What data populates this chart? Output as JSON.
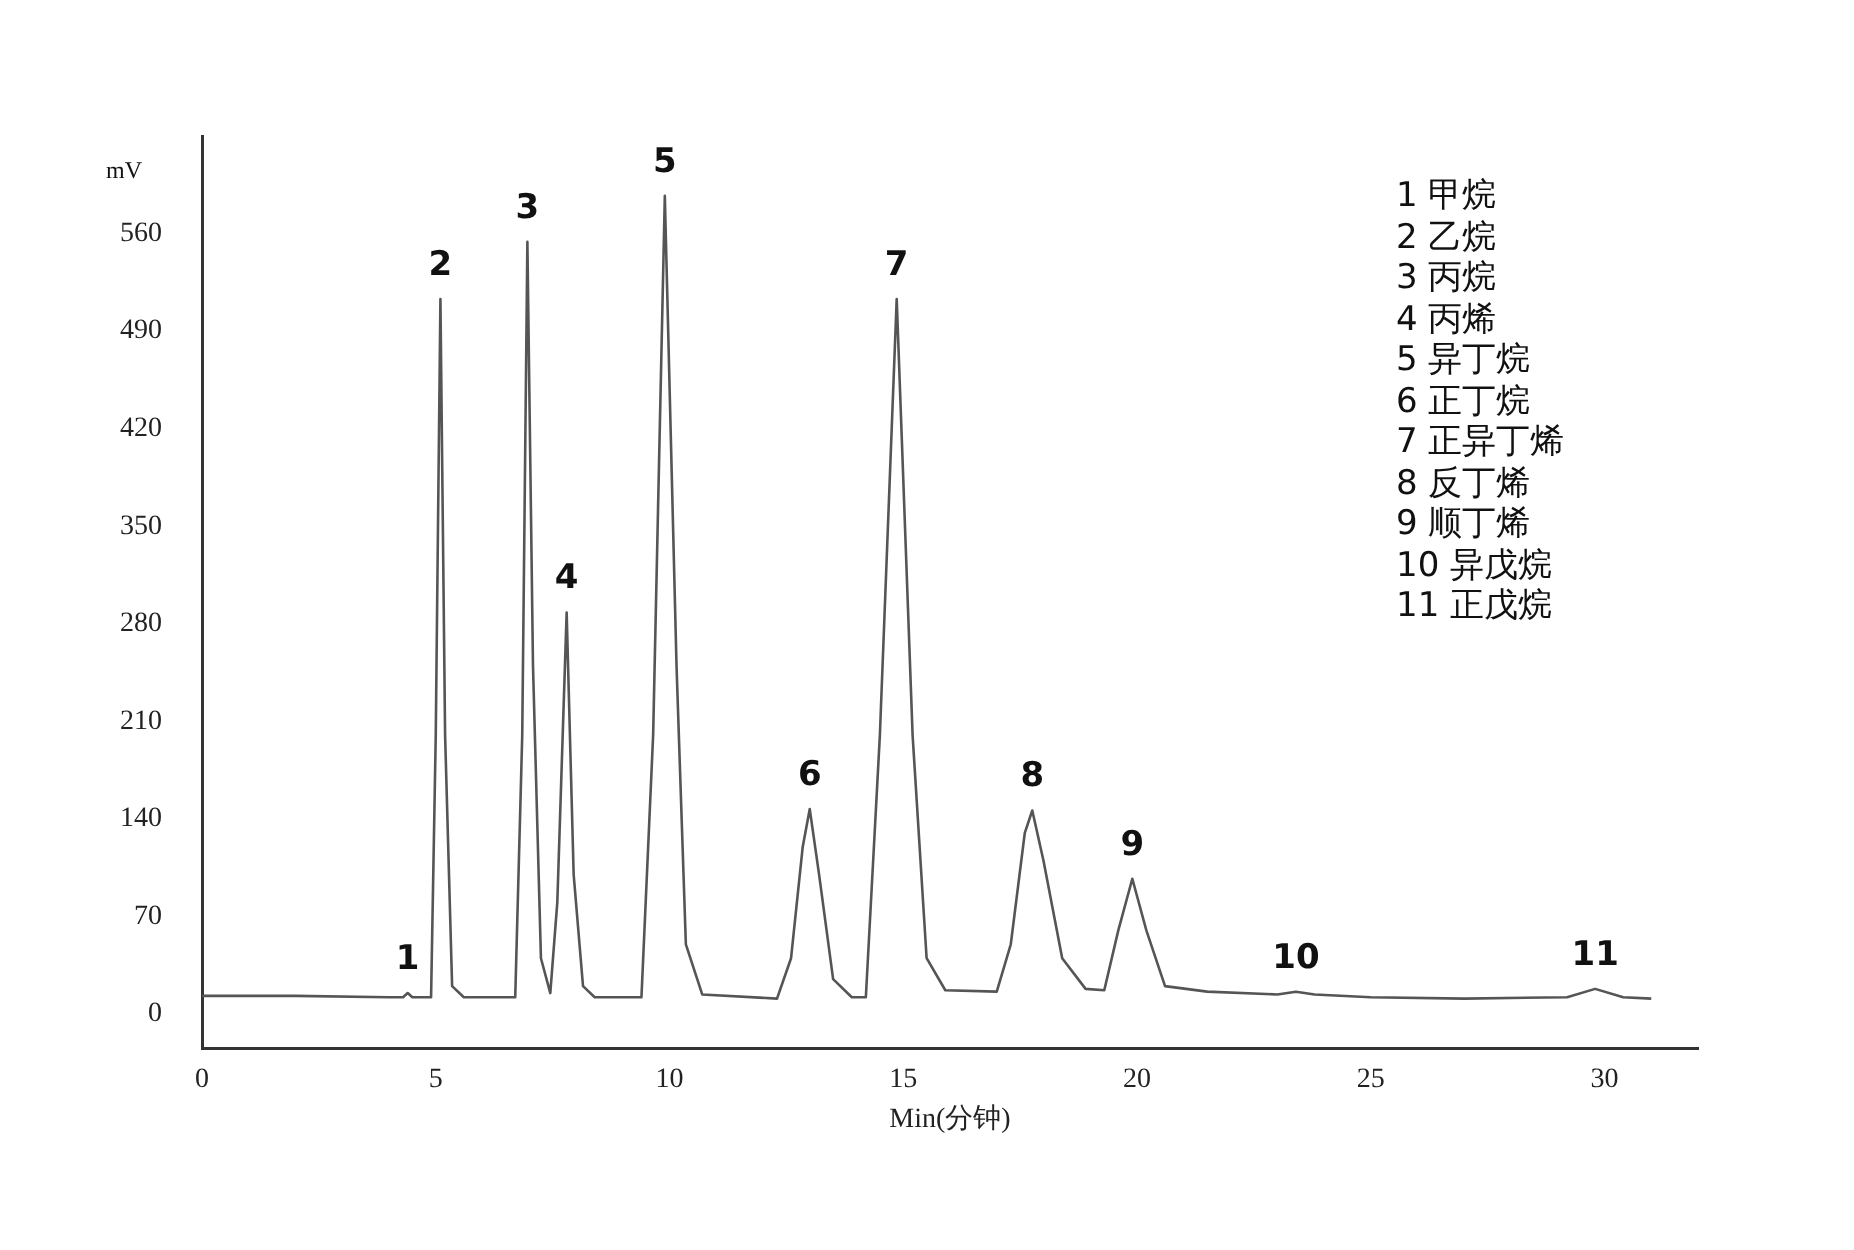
{
  "chart_data": {
    "type": "line",
    "xlabel": "Min(分钟)",
    "ylabel": "mV",
    "xlim": [
      0,
      32
    ],
    "xticks": [
      0,
      5,
      10,
      15,
      20,
      25,
      30
    ],
    "ylim": [
      -25,
      630
    ],
    "yticks": [
      0,
      70,
      140,
      210,
      280,
      350,
      420,
      490,
      560
    ],
    "grid": false,
    "legend": false,
    "marker": "none",
    "line_style": "solid",
    "series": [
      {
        "color": "#555555",
        "x": [
          0,
          2,
          4,
          4.3,
          4.4,
          4.5,
          4.9,
          5.0,
          5.1,
          5.2,
          5.35,
          5.6,
          6.7,
          6.85,
          6.96,
          7.08,
          7.25,
          7.45,
          7.6,
          7.8,
          7.95,
          8.15,
          8.4,
          9.4,
          9.65,
          9.9,
          10.15,
          10.35,
          10.7,
          12.3,
          12.6,
          12.85,
          13.0,
          13.2,
          13.5,
          13.9,
          14.2,
          14.5,
          14.86,
          15.2,
          15.5,
          15.9,
          17.0,
          17.3,
          17.6,
          17.76,
          18.0,
          18.4,
          18.9,
          19.3,
          19.6,
          19.9,
          20.2,
          20.6,
          21.5,
          23.0,
          23.4,
          23.8,
          25,
          27,
          29.2,
          29.8,
          30.4,
          31
        ],
        "values": [
          13,
          13,
          12,
          12,
          15,
          12,
          12,
          200,
          513,
          200,
          20,
          12,
          12,
          200,
          554,
          250,
          40,
          15,
          80,
          288,
          100,
          20,
          12,
          12,
          200,
          587,
          250,
          50,
          14,
          11,
          40,
          120,
          147,
          100,
          25,
          12,
          12,
          200,
          513,
          200,
          40,
          17,
          16,
          50,
          130,
          146,
          110,
          40,
          18,
          17,
          60,
          97,
          60,
          20,
          16,
          14,
          16,
          14,
          12,
          11,
          12,
          18,
          12,
          11
        ]
      }
    ],
    "annotations": [
      {
        "text": "1",
        "x": 4.4,
        "y": 15
      },
      {
        "text": "2",
        "x": 5.1,
        "y": 513
      },
      {
        "text": "3",
        "x": 6.96,
        "y": 554
      },
      {
        "text": "4",
        "x": 7.8,
        "y": 288
      },
      {
        "text": "5",
        "x": 9.9,
        "y": 587
      },
      {
        "text": "6",
        "x": 13.0,
        "y": 147
      },
      {
        "text": "7",
        "x": 14.86,
        "y": 513
      },
      {
        "text": "8",
        "x": 17.76,
        "y": 146
      },
      {
        "text": "9",
        "x": 19.9,
        "y": 97
      },
      {
        "text": "10",
        "x": 23.4,
        "y": 16
      },
      {
        "text": "11",
        "x": 29.8,
        "y": 18
      },
      "1 甲烷",
      "2 乙烷",
      "3 丙烷",
      "4 丙烯",
      "5 异丁烷",
      "6 正丁烷",
      "7 正异丁烯",
      "8 反丁烯",
      "9 顺丁烯",
      "10 异戊烷",
      "11 正戊烷"
    ]
  }
}
